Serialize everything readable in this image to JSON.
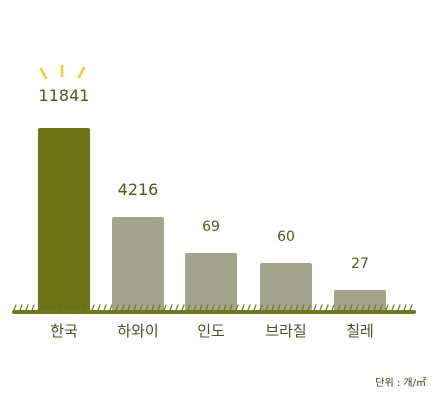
{
  "chart_data": {
    "type": "bar",
    "categories": [
      "한국",
      "하와이",
      "인도",
      "브라질",
      "칠레"
    ],
    "values": [
      11841,
      4216,
      69,
      60,
      27
    ],
    "value_labels": [
      "11841",
      "4216",
      "69",
      "60",
      "27"
    ],
    "unit_label": "단위 : 개/㎡",
    "highlight_index": 0,
    "grid": false,
    "colors": {
      "highlight": "#6b7216",
      "bar": "#a3a58d",
      "baseline": "#6b7a1a",
      "sparkle": "#f2cf2e",
      "label": "#4f5a1e"
    }
  }
}
